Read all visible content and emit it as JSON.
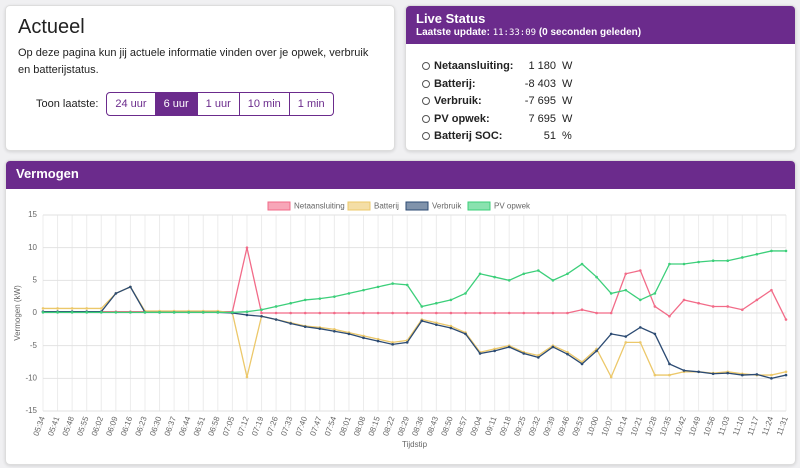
{
  "actueel": {
    "title": "Actueel",
    "description": "Op deze pagina kun jij actuele informatie vinden over je opwek, verbruik en batterijstatus.",
    "range_label": "Toon laatste:",
    "range_options": [
      "24 uur",
      "6 uur",
      "1 uur",
      "10 min",
      "1 min"
    ],
    "active_option": 1
  },
  "live_status": {
    "title": "Live Status",
    "update_label": "Laatste update:",
    "update_time": "11:33:09",
    "update_ago": "(0 seconden geleden)",
    "rows": [
      {
        "label": "Netaansluiting:",
        "value": "1 180",
        "unit": "W"
      },
      {
        "label": "Batterij:",
        "value": "-8 403",
        "unit": "W"
      },
      {
        "label": "Verbruik:",
        "value": "-7 695",
        "unit": "W"
      },
      {
        "label": "PV opwek:",
        "value": "7 695",
        "unit": "W"
      },
      {
        "label": "Batterij SOC:",
        "value": "51",
        "unit": "%"
      }
    ]
  },
  "chart_data": {
    "type": "line",
    "title": "Vermogen",
    "x_label": "Tijdstip",
    "y_label": "Vermogen (kW)",
    "categories": [
      "05:34",
      "05:41",
      "05:48",
      "05:55",
      "06:02",
      "06:09",
      "06:16",
      "06:23",
      "06:30",
      "06:37",
      "06:44",
      "06:51",
      "06:58",
      "07:05",
      "07:12",
      "07:19",
      "07:26",
      "07:33",
      "07:40",
      "07:47",
      "07:54",
      "08:01",
      "08:08",
      "08:15",
      "08:22",
      "08:29",
      "08:36",
      "08:43",
      "08:50",
      "08:57",
      "09:04",
      "09:11",
      "09:18",
      "09:25",
      "09:32",
      "09:39",
      "09:46",
      "09:53",
      "10:00",
      "10:07",
      "10:14",
      "10:21",
      "10:28",
      "10:35",
      "10:42",
      "10:49",
      "10:56",
      "11:03",
      "11:10",
      "11:17",
      "11:24",
      "11:31"
    ],
    "series": [
      {
        "name": "Netaansluiting",
        "color": "#f26b88",
        "values": [
          0.2,
          0.2,
          0.2,
          0.2,
          0.2,
          0.2,
          0.2,
          0.2,
          0.2,
          0.2,
          0.2,
          0.2,
          0.2,
          0.2,
          10,
          0,
          0,
          0,
          0,
          0,
          0,
          0,
          0,
          0,
          0,
          0,
          0,
          0,
          0,
          0,
          0,
          0,
          0,
          0,
          0,
          0,
          0,
          0.5,
          0,
          0,
          6,
          6.5,
          1,
          -0.5,
          2,
          1.5,
          1,
          1,
          0.5,
          2,
          3.5,
          -1
        ]
      },
      {
        "name": "Batterij",
        "color": "#ecc86a",
        "values": [
          0.7,
          0.7,
          0.7,
          0.7,
          0.7,
          3,
          4,
          0.3,
          0.3,
          0.3,
          0.3,
          0.3,
          0.3,
          0,
          -9.8,
          -0.5,
          -1,
          -1.5,
          -2,
          -2.2,
          -2.5,
          -3,
          -3.5,
          -4,
          -4.5,
          -4.2,
          -1,
          -1.5,
          -2,
          -3,
          -6,
          -5.5,
          -5,
          -6,
          -6.5,
          -5,
          -6,
          -7.5,
          -5.5,
          -9.8,
          -4.5,
          -4.5,
          -9.5,
          -9.5,
          -9,
          -9,
          -9.2,
          -9,
          -9.3,
          -9.5,
          -9.5,
          -9
        ]
      },
      {
        "name": "Verbruik",
        "color": "#2c4b73",
        "values": [
          0.2,
          0.2,
          0.2,
          0.2,
          0.2,
          3,
          4,
          0.1,
          0.1,
          0.1,
          0.1,
          0.1,
          0.1,
          0,
          -0.3,
          -0.5,
          -1,
          -1.6,
          -2.1,
          -2.4,
          -2.8,
          -3.2,
          -3.8,
          -4.3,
          -4.8,
          -4.5,
          -1.2,
          -1.8,
          -2.3,
          -3.2,
          -6.2,
          -5.8,
          -5.2,
          -6.2,
          -6.8,
          -5.2,
          -6.3,
          -7.8,
          -5.8,
          -3.2,
          -3.6,
          -2.2,
          -3.2,
          -7.8,
          -8.8,
          -9,
          -9.3,
          -9.2,
          -9.5,
          -9.4,
          -10,
          -9.5
        ]
      },
      {
        "name": "PV opwek",
        "color": "#3ccf7a",
        "values": [
          0.1,
          0.1,
          0.1,
          0.1,
          0.1,
          0.1,
          0.1,
          0.1,
          0.1,
          0.1,
          0.1,
          0.1,
          0.1,
          0.1,
          0.2,
          0.5,
          1,
          1.5,
          2,
          2.2,
          2.5,
          3,
          3.5,
          4,
          4.5,
          4.3,
          1,
          1.5,
          2,
          3,
          6,
          5.5,
          5,
          6,
          6.5,
          5,
          6,
          7.5,
          5.5,
          3,
          3.5,
          2,
          3,
          7.5,
          7.5,
          7.8,
          8,
          8,
          8.5,
          9,
          9.5,
          9.5
        ]
      }
    ],
    "ylim": [
      -15,
      15
    ],
    "yticks": [
      -15,
      -10,
      -5,
      0,
      5,
      10,
      15
    ],
    "grid": true,
    "legend": "top"
  }
}
